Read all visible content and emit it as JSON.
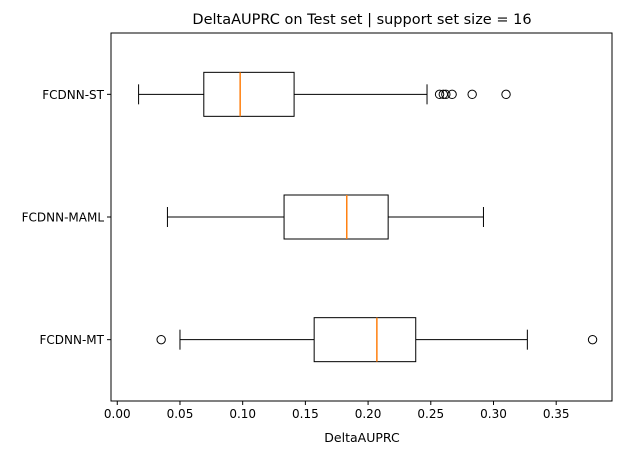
{
  "chart_data": {
    "type": "boxplot",
    "title": "DeltaAUPRC on Test set | support set size = 16",
    "xlabel": "DeltaAUPRC",
    "ylabel": "",
    "xlim": [
      -0.005,
      0.3945
    ],
    "xticks": [
      0.0,
      0.05,
      0.1,
      0.15,
      0.2,
      0.25,
      0.3,
      0.35
    ],
    "xtick_labels": [
      "0.00",
      "0.05",
      "0.10",
      "0.15",
      "0.20",
      "0.25",
      "0.30",
      "0.35"
    ],
    "grid": false,
    "series": [
      {
        "name": "FCDNN-ST",
        "whisker_low": 0.017,
        "q1": 0.069,
        "median": 0.098,
        "q3": 0.141,
        "whisker_high": 0.247,
        "outliers": [
          0.257,
          0.26,
          0.262,
          0.267,
          0.283,
          0.31
        ]
      },
      {
        "name": "FCDNN-MAML",
        "whisker_low": 0.04,
        "q1": 0.133,
        "median": 0.183,
        "q3": 0.216,
        "whisker_high": 0.292,
        "outliers": []
      },
      {
        "name": "FCDNN-MT",
        "whisker_low": 0.05,
        "q1": 0.157,
        "median": 0.207,
        "q3": 0.238,
        "whisker_high": 0.327,
        "outliers": [
          0.035,
          0.379
        ]
      }
    ],
    "colors": {
      "box": "#000000",
      "median": "#ff7f0e",
      "outlier": "#000000"
    }
  }
}
